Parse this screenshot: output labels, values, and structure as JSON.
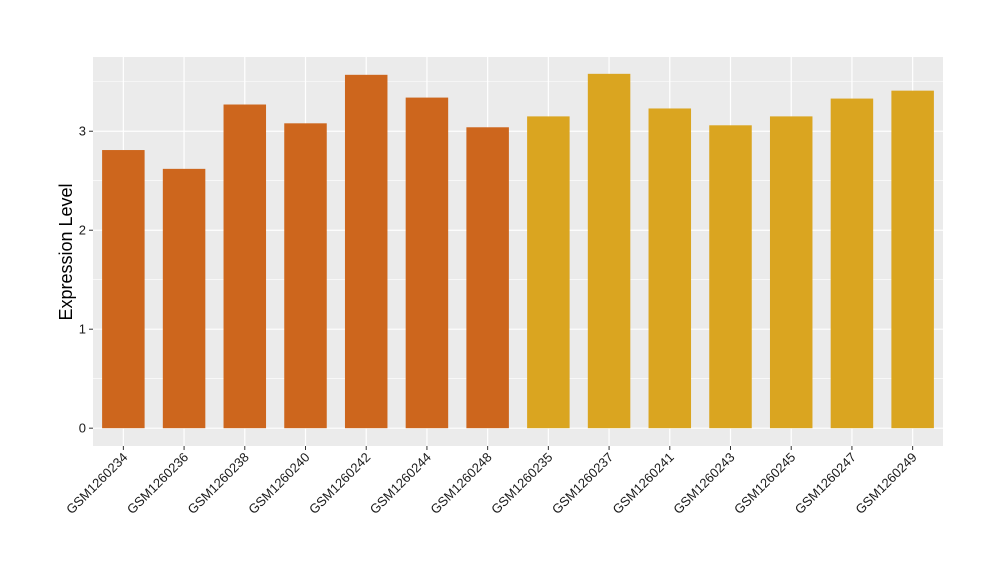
{
  "chart_data": {
    "type": "bar",
    "title": "",
    "xlabel": "",
    "ylabel": "Expression Level",
    "categories": [
      "GSM1260234",
      "GSM1260236",
      "GSM1260238",
      "GSM1260240",
      "GSM1260242",
      "GSM1260244",
      "GSM1260248",
      "GSM1260235",
      "GSM1260237",
      "GSM1260241",
      "GSM1260243",
      "GSM1260245",
      "GSM1260247",
      "GSM1260249"
    ],
    "values": [
      2.81,
      2.62,
      3.27,
      3.08,
      3.57,
      3.34,
      3.04,
      3.15,
      3.58,
      3.23,
      3.06,
      3.15,
      3.33,
      3.41
    ],
    "groups": [
      0,
      0,
      0,
      0,
      0,
      0,
      0,
      1,
      1,
      1,
      1,
      1,
      1,
      1
    ],
    "colors": [
      "#CD661D",
      "#DAA520"
    ],
    "ylim": [
      -0.18,
      3.75
    ],
    "yticks": [
      0,
      1,
      2,
      3
    ],
    "grid": true,
    "legend": "none",
    "panel_background": "#EBEBEB",
    "grid_color": "#FFFFFF"
  }
}
